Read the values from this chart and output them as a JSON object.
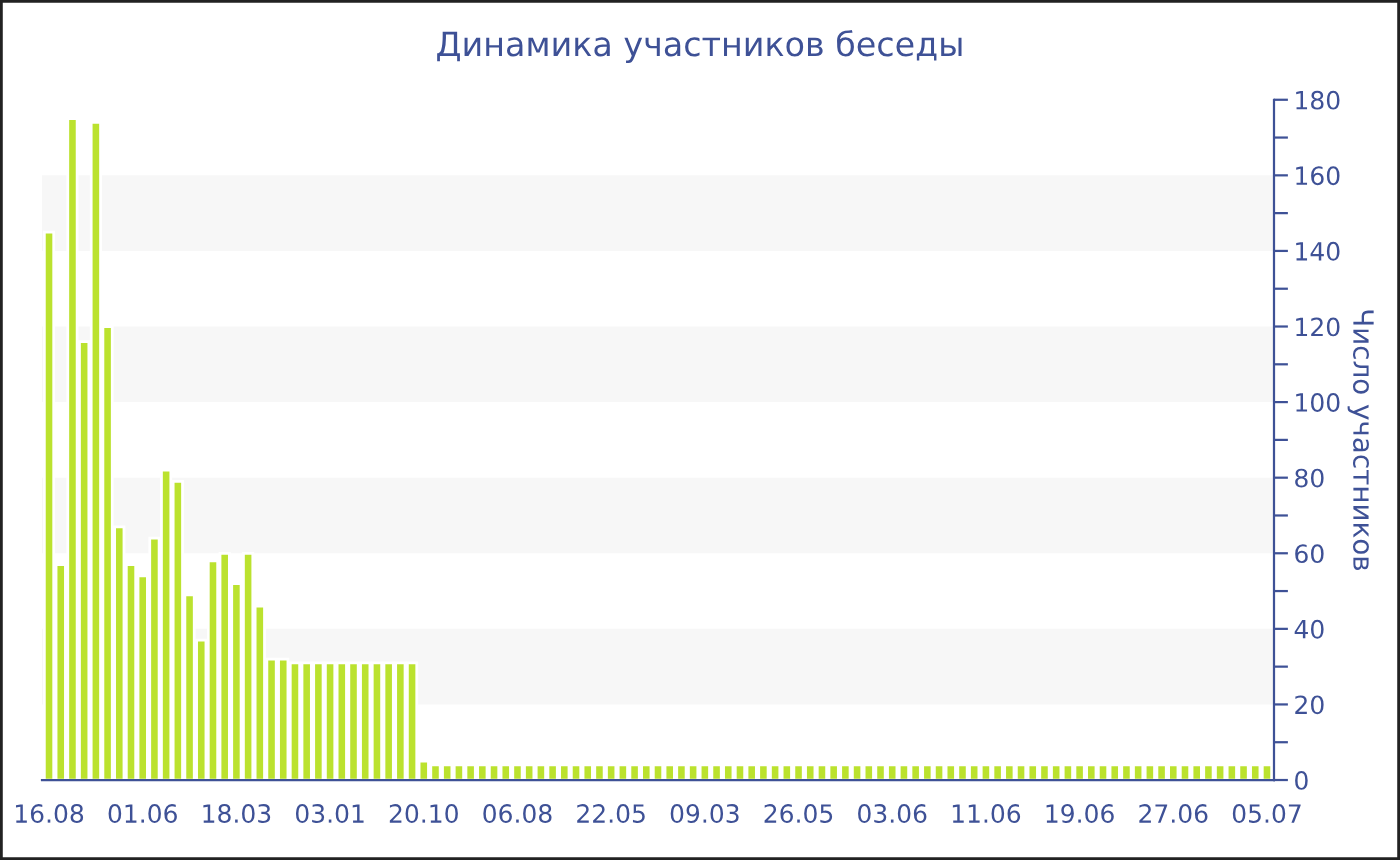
{
  "chart_data": {
    "type": "bar",
    "title": "Динамика участников беседы",
    "ylabel": "Число участников",
    "categories": [
      "16.08",
      null,
      null,
      null,
      null,
      null,
      null,
      null,
      "01.06",
      null,
      null,
      null,
      null,
      null,
      null,
      null,
      "18.03",
      null,
      null,
      null,
      null,
      null,
      null,
      null,
      "03.01",
      null,
      null,
      null,
      null,
      null,
      null,
      null,
      "20.10",
      null,
      null,
      null,
      null,
      null,
      null,
      null,
      "06.08",
      null,
      null,
      null,
      null,
      null,
      null,
      null,
      "22.05",
      null,
      null,
      null,
      null,
      null,
      null,
      null,
      "09.03",
      null,
      null,
      null,
      null,
      null,
      null,
      null,
      "26.05",
      null,
      null,
      null,
      null,
      null,
      null,
      null,
      "03.06",
      null,
      null,
      null,
      null,
      null,
      null,
      null,
      "11.06",
      null,
      null,
      null,
      null,
      null,
      null,
      null,
      "19.06",
      null,
      null,
      null,
      null,
      null,
      null,
      null,
      "27.06",
      null,
      null,
      null,
      null,
      null,
      null,
      null,
      "05.07"
    ],
    "values": [
      145,
      57,
      175,
      116,
      174,
      120,
      67,
      57,
      54,
      64,
      82,
      79,
      49,
      37,
      58,
      60,
      52,
      60,
      46,
      32,
      32,
      31,
      31,
      31,
      31,
      31,
      31,
      31,
      31,
      31,
      31,
      31,
      5,
      4,
      4,
      4,
      4,
      4,
      4,
      4,
      4,
      4,
      4,
      4,
      4,
      4,
      4,
      4,
      4,
      4,
      4,
      4,
      4,
      4,
      4,
      4,
      4,
      4,
      4,
      4,
      4,
      4,
      4,
      4,
      4,
      4,
      4,
      4,
      4,
      4,
      4,
      4,
      4,
      4,
      4,
      4,
      4,
      4,
      4,
      4,
      4,
      4,
      4,
      4,
      4,
      4,
      4,
      4,
      4,
      4,
      4,
      4,
      4,
      4,
      4,
      4,
      4,
      4,
      4,
      4,
      4,
      4,
      4,
      4,
      4
    ],
    "color": "#bbe22e",
    "ylim": [
      0,
      180
    ],
    "yticks": [
      0,
      {
        "value": 10,
        "label": null
      },
      20,
      {
        "value": 30,
        "label": null
      },
      40,
      {
        "value": 50,
        "label": null
      },
      60,
      {
        "value": 70,
        "label": null
      },
      80,
      {
        "value": 90,
        "label": null
      },
      100,
      {
        "value": 110,
        "label": null
      },
      120,
      {
        "value": 130,
        "label": null
      },
      140,
      {
        "value": 150,
        "label": null
      },
      160,
      {
        "value": 170,
        "label": null
      },
      180
    ],
    "bands": [
      {
        "axis": "y",
        "from": 20,
        "to": 40,
        "color": "#f7f7f7"
      },
      {
        "axis": "y",
        "from": 60,
        "to": 80,
        "color": "#f7f7f7"
      },
      {
        "axis": "y",
        "from": 100,
        "to": 120,
        "color": "#f7f7f7"
      },
      {
        "axis": "y",
        "from": 140,
        "to": 160,
        "color": "#f7f7f7"
      }
    ],
    "grid": false,
    "legend": false
  }
}
